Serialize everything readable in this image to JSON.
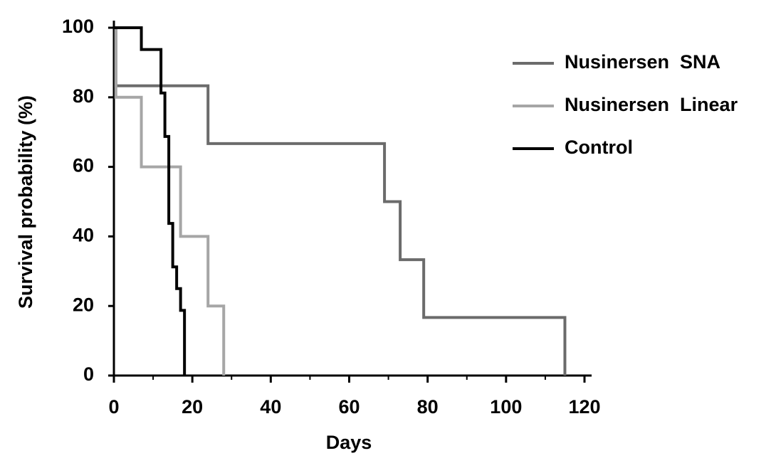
{
  "chart_data": {
    "type": "step",
    "x_label": "Days",
    "y_label": "Survival probability (%)",
    "xlim": [
      0,
      120
    ],
    "ylim": [
      0,
      100
    ],
    "xticks": [
      0,
      20,
      40,
      60,
      80,
      100,
      120
    ],
    "yticks": [
      0,
      20,
      40,
      60,
      80,
      100
    ],
    "legend": "right",
    "series": [
      {
        "name": "Nusinersen  SNA",
        "color": "#6b6b6b",
        "x": [
          0,
          0.5,
          24,
          69,
          73,
          79,
          115
        ],
        "values": [
          100,
          83.3,
          66.7,
          50,
          33.3,
          16.7,
          0
        ]
      },
      {
        "name": "Nusinersen  Linear",
        "color": "#a6a6a6",
        "x": [
          0,
          0.5,
          7,
          17,
          24,
          28
        ],
        "values": [
          100,
          80,
          60,
          40,
          20,
          0
        ]
      },
      {
        "name": "Control",
        "color": "#000000",
        "x": [
          0,
          7,
          12,
          13,
          14,
          15,
          16,
          17,
          18
        ],
        "values": [
          100,
          93.75,
          81.25,
          68.75,
          43.75,
          31.25,
          25,
          18.75,
          0
        ]
      }
    ]
  }
}
